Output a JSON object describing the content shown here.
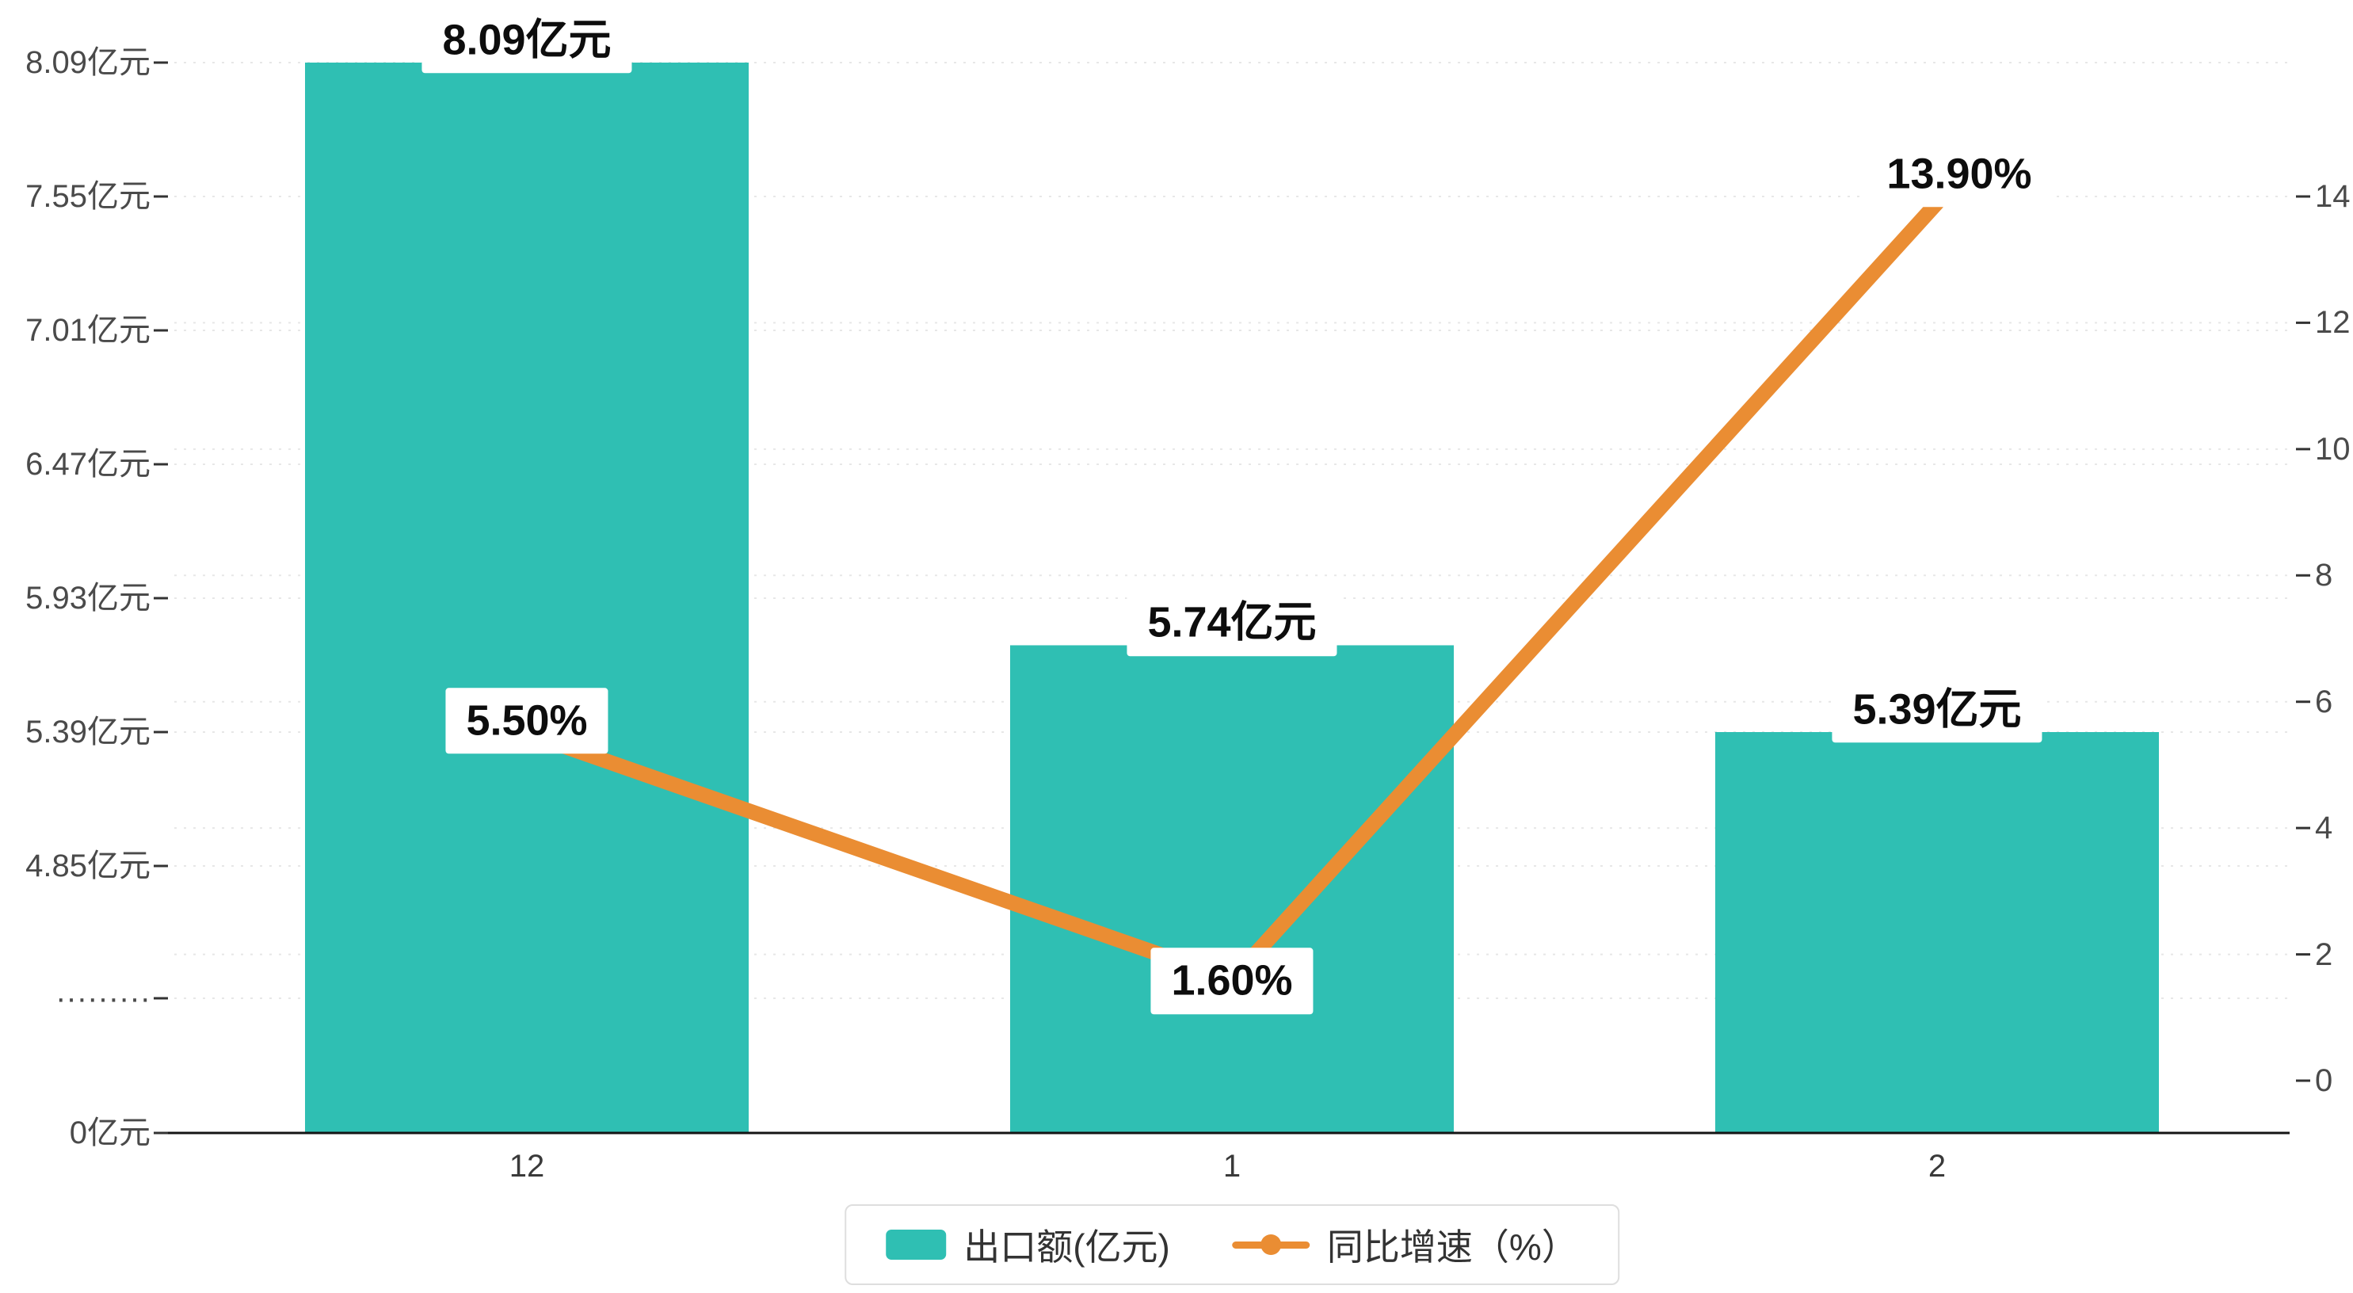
{
  "chart_data": {
    "type": "combo_bar_line",
    "categories": [
      "12",
      "1",
      "2"
    ],
    "series": [
      {
        "name": "出口额(亿元)",
        "type": "bar",
        "axis": "left",
        "color": "#2fbfb3",
        "values": [
          8.09,
          5.74,
          5.39
        ],
        "labels": [
          "8.09亿元",
          "5.74亿元",
          "5.39亿元"
        ]
      },
      {
        "name": "同比增速（%）",
        "type": "line",
        "axis": "right",
        "color": "#ea8d33",
        "values": [
          5.5,
          1.6,
          13.9
        ],
        "labels": [
          "5.50%",
          "1.60%",
          "13.90%"
        ]
      }
    ],
    "left_axis": {
      "broken_axis": true,
      "ticks": [
        {
          "label": "8.09亿元",
          "value": 8.09
        },
        {
          "label": "7.55亿元",
          "value": 7.55
        },
        {
          "label": "7.01亿元",
          "value": 7.01
        },
        {
          "label": "6.47亿元",
          "value": 6.47
        },
        {
          "label": "5.93亿元",
          "value": 5.93
        },
        {
          "label": "5.39亿元",
          "value": 5.39
        },
        {
          "label": "4.85亿元",
          "value": 4.85
        },
        {
          "label": "·········",
          "value": null
        },
        {
          "label": "0亿元",
          "value": 0
        }
      ]
    },
    "right_axis": {
      "min": 0,
      "max": 14,
      "step": 2,
      "ticks": [
        {
          "label": "14",
          "value": 14
        },
        {
          "label": "12",
          "value": 12
        },
        {
          "label": "10",
          "value": 10
        },
        {
          "label": "8",
          "value": 8
        },
        {
          "label": "6",
          "value": 6
        },
        {
          "label": "4",
          "value": 4
        },
        {
          "label": "2",
          "value": 2
        },
        {
          "label": "0",
          "value": 0
        }
      ]
    },
    "legend": [
      {
        "label": "出口额(亿元)",
        "marker": "bar",
        "color": "#2fbfb3"
      },
      {
        "label": "同比增速（%）",
        "marker": "line",
        "color": "#ea8d33"
      }
    ],
    "grid": {
      "horizontal": true,
      "style": "dashed"
    }
  }
}
